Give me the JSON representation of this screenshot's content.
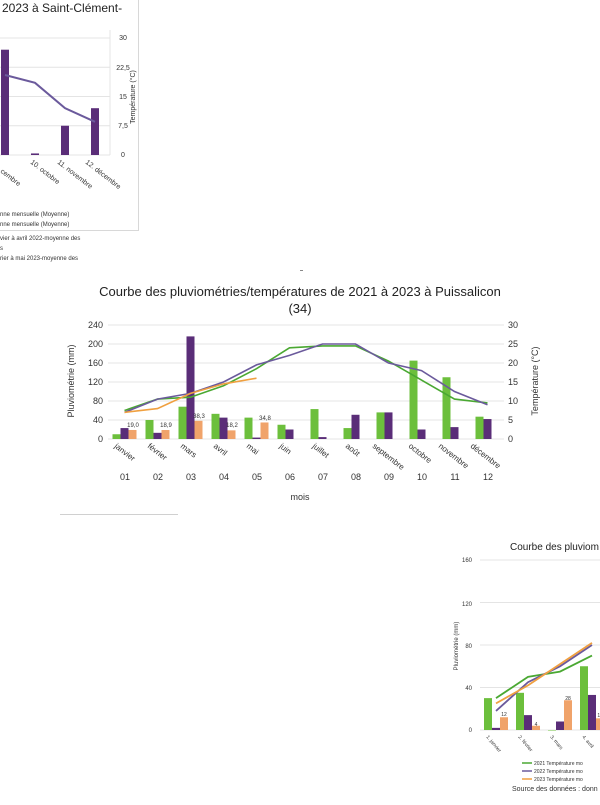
{
  "colors": {
    "green": "#6cbf3c",
    "purple": "#5a2d78",
    "orange": "#f0a36a",
    "green_line": "#4aa832",
    "purple_line": "#6b5a9c",
    "orange_line": "#f0a040",
    "grid": "#e4e4e4",
    "axis_text": "#333333"
  },
  "top_chart": {
    "title": "2023 à Saint-Clément-",
    "y2_ticks": [
      "30",
      "22,5",
      "15",
      "7,5",
      "0"
    ],
    "y2_label": "Température (°C)",
    "x_ticks": [
      "cembre",
      "10. octobre",
      "11. novembre",
      "12. décembre"
    ],
    "legend": [
      "nne mensuelle (Moyenne)",
      "nne mensuelle (Moyenne)"
    ],
    "notes": [
      "vier à avril 2022-moyenne des",
      "s",
      "rier à mai 2023-moyenne des"
    ]
  },
  "main_chart": {
    "title_line1": "Courbe des pluviométries/températures de 2021 à 2023 à Puissalicon",
    "title_line2": "(34)",
    "ylabel": "Pluviométrie (mm)",
    "y2label": "Température (°C)",
    "xlabel": "mois",
    "y_ticks": [
      "240",
      "200",
      "160",
      "120",
      "80",
      "40",
      "0"
    ],
    "y2_ticks": [
      "30",
      "25",
      "20",
      "15",
      "10",
      "5",
      "0"
    ],
    "month_names": [
      "janvier",
      "février",
      "mars",
      "avril",
      "mai",
      "juin",
      "juillet",
      "août",
      "septembre",
      "octobre",
      "novembre",
      "décembre"
    ],
    "month_numbers": [
      "01",
      "02",
      "03",
      "04",
      "05",
      "06",
      "07",
      "08",
      "09",
      "10",
      "11",
      "12"
    ],
    "data_labels": [
      "19,0",
      "18,9",
      "38,3",
      "18,2",
      "34,8"
    ]
  },
  "chart_data": [
    {
      "type": "bar",
      "title": "Courbe des pluviométries/températures de 2021 à 2023 à Puissalicon (34)",
      "xlabel": "mois",
      "ylabel": "Pluviométrie (mm)",
      "y2label": "Température (°C)",
      "ylim": [
        0,
        240
      ],
      "y2lim": [
        0,
        30
      ],
      "categories": [
        "01",
        "02",
        "03",
        "04",
        "05",
        "06",
        "07",
        "08",
        "09",
        "10",
        "11",
        "12"
      ],
      "bar_series": [
        {
          "values": [
            10,
            40,
            68,
            53,
            45,
            30,
            63,
            23,
            56,
            165,
            130,
            47
          ]
        },
        {
          "values": [
            23,
            13,
            216,
            45,
            3,
            20,
            4,
            51,
            56,
            20,
            25,
            42
          ]
        },
        {
          "values": [
            19.0,
            18.9,
            38.3,
            18.2,
            34.8,
            null,
            null,
            null,
            null,
            null,
            null,
            null
          ]
        }
      ],
      "line_series": [
        {
          "values": [
            7.5,
            10.5,
            11,
            14,
            18.5,
            24,
            24.5,
            24.5,
            20.5,
            15.5,
            10.5,
            9.5
          ]
        },
        {
          "values": [
            7,
            10.5,
            12,
            15,
            19.5,
            22,
            25,
            25,
            20,
            18,
            12.5,
            9
          ]
        },
        {
          "values": [
            7,
            8,
            12,
            14.5,
            16,
            null,
            null,
            null,
            null,
            null,
            null,
            null
          ]
        }
      ],
      "grid": true
    },
    {
      "type": "bar",
      "title": "2023 à Saint-Clément-",
      "y2label": "Température (°C)",
      "y2lim": [
        0,
        30
      ],
      "categories": [
        "9",
        "10. octobre",
        "11. novembre",
        "12. décembre"
      ],
      "bar_series": [
        {
          "values": [
            27,
            0.4,
            7.5,
            12
          ]
        }
      ],
      "line_series": [
        {
          "values": [
            20.5,
            18.5,
            12,
            8.5
          ]
        }
      ],
      "grid": true
    },
    {
      "type": "bar",
      "title": "Courbe des pluviom",
      "ylabel": "Pluviométrie (mm)",
      "y_ticks": [
        "160",
        "120",
        "80",
        "40",
        "0"
      ],
      "ylim": [
        0,
        160
      ],
      "categories": [
        "1. janvier",
        "2. février",
        "3. mars",
        "4. avril"
      ],
      "bar_series": [
        {
          "values": [
            30,
            35,
            0,
            60
          ]
        },
        {
          "values": [
            2,
            14,
            8,
            33
          ]
        },
        {
          "values": [
            12,
            4,
            28,
            11
          ]
        }
      ],
      "line_series": [
        {
          "values": [
            30,
            50,
            55,
            70
          ]
        },
        {
          "values": [
            18,
            45,
            60,
            80
          ]
        },
        {
          "values": [
            25,
            42,
            62,
            82
          ]
        }
      ],
      "data_labels": [
        "12",
        "4",
        "28",
        "11"
      ],
      "legend": [
        "2021 Température mo",
        "2022 Température mo",
        "2023 Température mo"
      ],
      "source": "Source des données : donn"
    }
  ]
}
